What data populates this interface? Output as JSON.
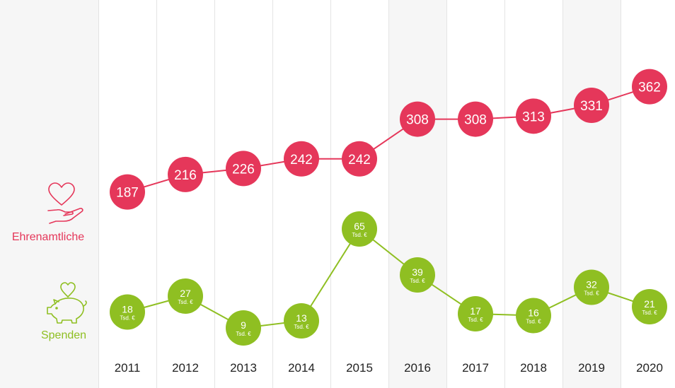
{
  "colors": {
    "ehrenamtliche": "#e5375a",
    "spenden": "#8fbf22"
  },
  "legend": {
    "ehrenamtliche": {
      "label": "Ehrenamtliche",
      "icon": "heart-hand-icon"
    },
    "spenden": {
      "label": "Spenden",
      "icon": "piggy-bank-heart-icon"
    }
  },
  "chart_data": {
    "type": "line",
    "categories": [
      "2011",
      "2012",
      "2013",
      "2014",
      "2015",
      "2016",
      "2017",
      "2018",
      "2019",
      "2020"
    ],
    "series": [
      {
        "name": "Ehrenamtliche",
        "values": [
          187,
          216,
          226,
          242,
          242,
          308,
          308,
          313,
          331,
          362
        ]
      },
      {
        "name": "Spenden",
        "unit": "Tsd. €",
        "values": [
          18,
          27,
          9,
          13,
          65,
          39,
          17,
          16,
          32,
          21
        ]
      }
    ],
    "shaded_columns": [
      "2016",
      "2019"
    ],
    "grid": "vertical column bands"
  }
}
